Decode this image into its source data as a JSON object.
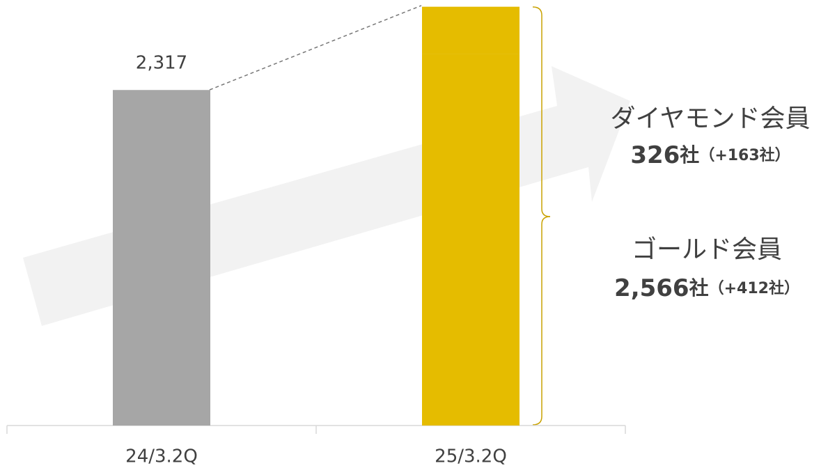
{
  "chart_data": {
    "type": "bar",
    "categories": [
      "24/3.2Q",
      "25/3.2Q"
    ],
    "series": [
      {
        "color": "#a6a6a6",
        "values": [
          2317,
          null
        ],
        "value_labels": [
          "2,317",
          null
        ]
      },
      {
        "name": "ゴールド会員",
        "color": "#e5bc00",
        "values": [
          null,
          2566
        ],
        "value_labels": [
          null,
          "2,566"
        ],
        "change_labels": [
          null,
          "（+412社）"
        ]
      },
      {
        "name": "ダイヤモンド会員",
        "color": "#e5bc00",
        "values": [
          null,
          326
        ],
        "value_labels": [
          null,
          "326"
        ],
        "change_labels": [
          null,
          "（+163社）"
        ]
      }
    ],
    "unit": "社",
    "ylim": [
      0,
      2900
    ]
  }
}
